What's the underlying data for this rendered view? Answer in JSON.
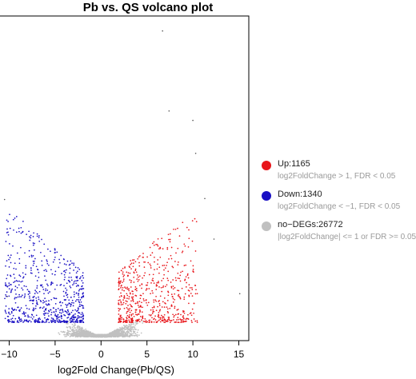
{
  "chart_data": {
    "type": "scatter",
    "title": "Pb vs. QS volcano plot",
    "xlabel": "log2Fold Change(Pb/QS)",
    "ylabel": "",
    "xlim": [
      -11,
      16
    ],
    "ylim": [
      -0.3,
      34
    ],
    "x_ticks": [
      -10,
      -5,
      0,
      5,
      10,
      15
    ],
    "x_tick_labels": [
      "−10",
      "−5",
      "0",
      "5",
      "10",
      "15"
    ],
    "grid": false,
    "legend_position": "right",
    "series": [
      {
        "name": "Up:1165",
        "description": "log2FoldChange > 1, FDR < 0.05",
        "color": "#e8161b",
        "count": 1165
      },
      {
        "name": "Down:1340",
        "description": "log2FoldChange < −1, FDR < 0.05",
        "color": "#1a10c4",
        "count": 1340
      },
      {
        "name": "no−DEGs:26772",
        "description": "|log2FoldChange| <= 1 or FDR >= 0.05",
        "color": "#c0c0c0",
        "count": 26772
      }
    ],
    "highlighted_points": [
      {
        "x": 6.7,
        "y": 32.5
      },
      {
        "x": 7.4,
        "y": 24.0
      },
      {
        "x": 10.0,
        "y": 23.0
      },
      {
        "x": 10.3,
        "y": 19.5
      },
      {
        "x": 11.3,
        "y": 14.7
      },
      {
        "x": 12.3,
        "y": 10.4
      },
      {
        "x": 15.1,
        "y": 4.6
      },
      {
        "x": -10.5,
        "y": 14.6
      },
      {
        "x": -10.2,
        "y": 4.3
      }
    ]
  }
}
